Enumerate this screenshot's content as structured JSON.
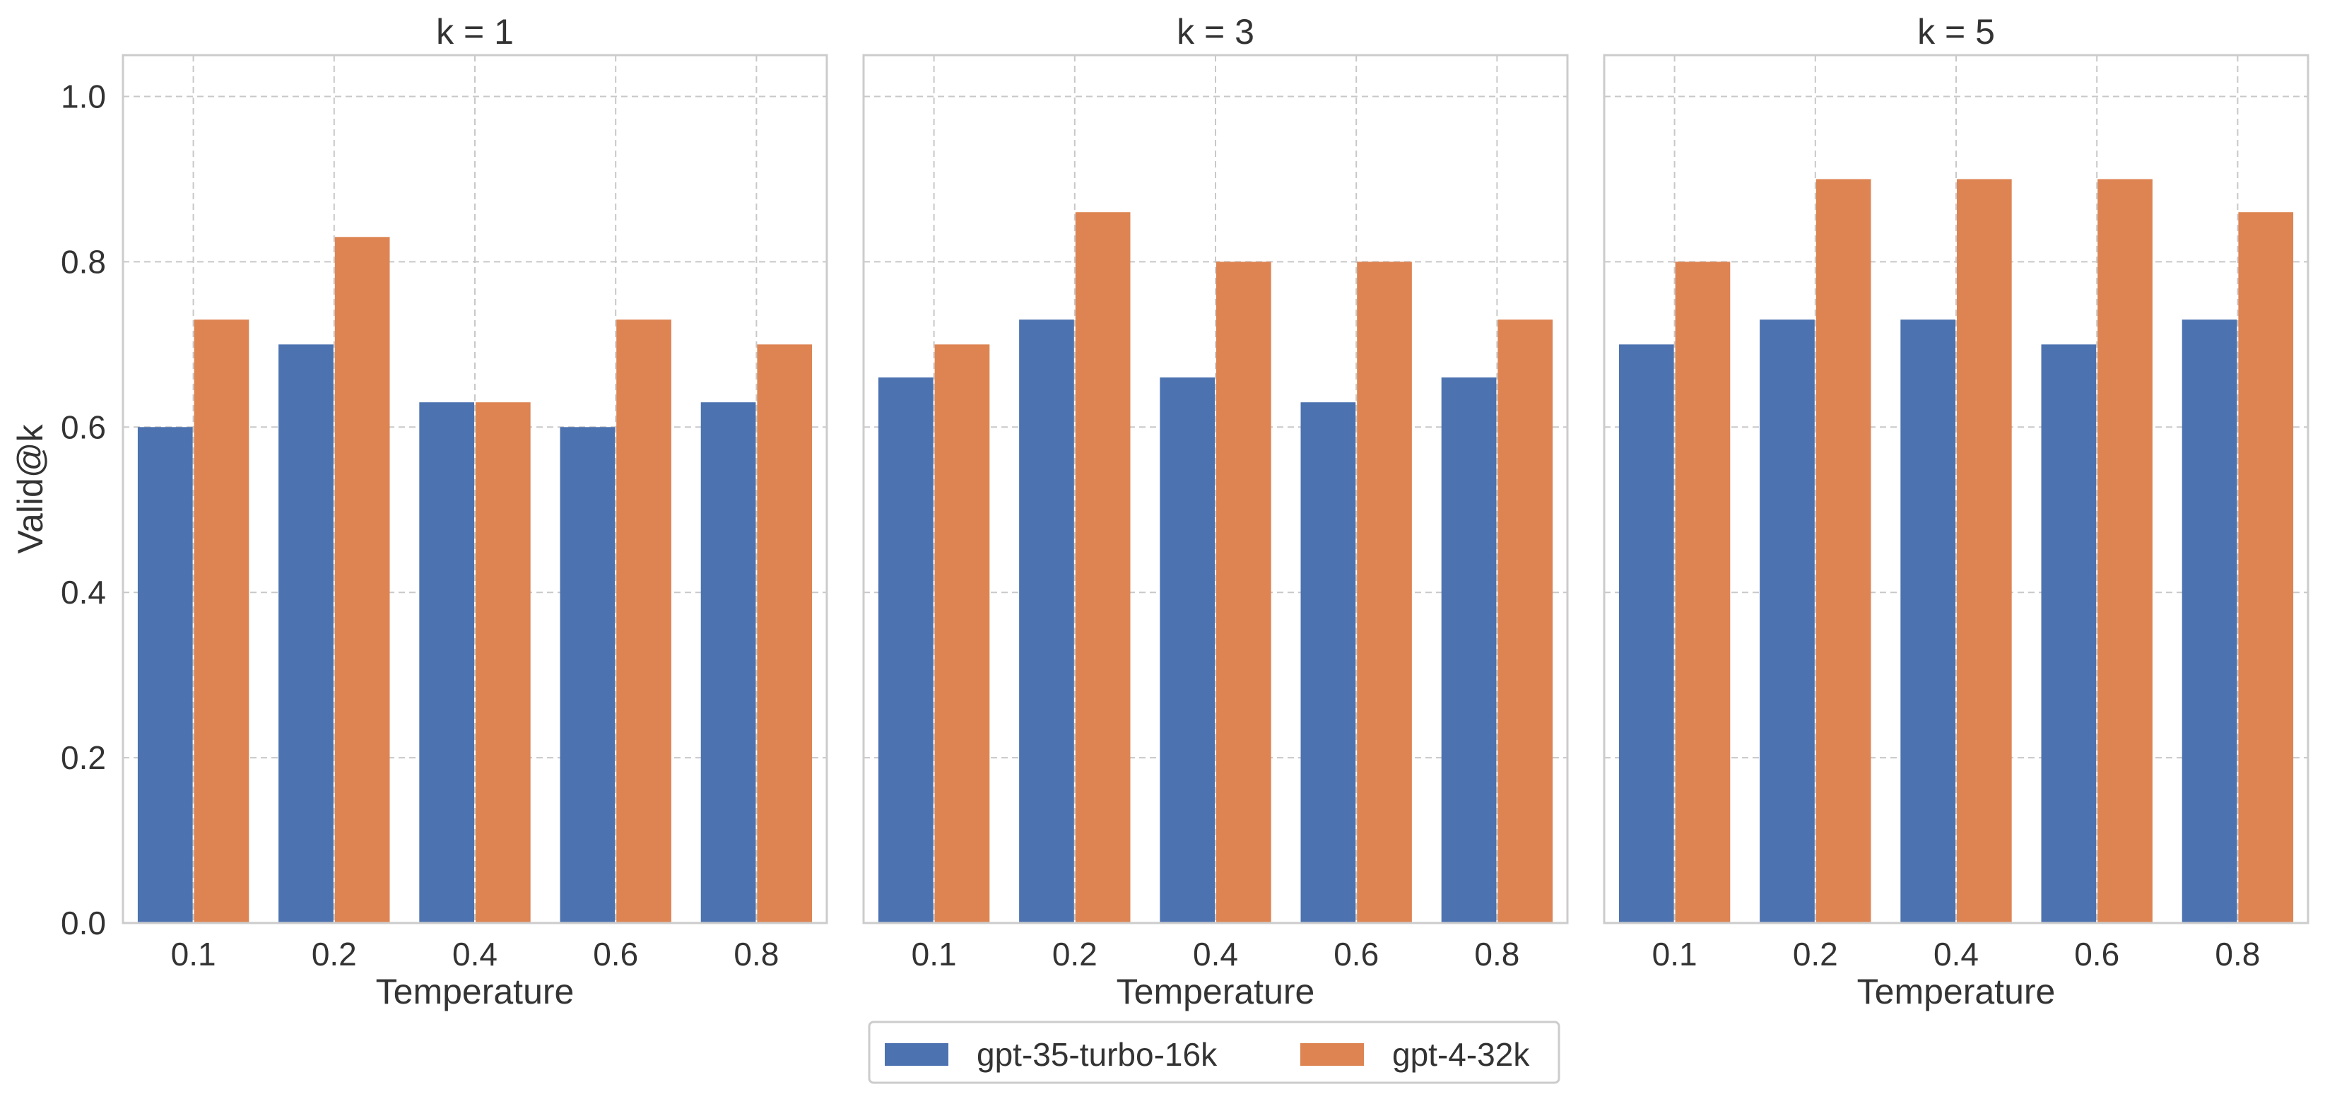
{
  "colors": {
    "series_1": "#4c72b0",
    "series_2": "#dd8452",
    "grid": "#c8c8c8",
    "axes_edge": "#cccccc",
    "text": "#333333"
  },
  "legend": {
    "placement": "bottom-center",
    "entries": [
      "gpt-35-turbo-16k",
      "gpt-4-32k"
    ]
  },
  "chart_data": [
    {
      "type": "bar",
      "title": "k = 1",
      "xlabel": "Temperature",
      "ylabel": "Valid@k",
      "categories": [
        "0.1",
        "0.2",
        "0.4",
        "0.6",
        "0.8"
      ],
      "yticks": [
        "0.0",
        "0.2",
        "0.4",
        "0.6",
        "0.8",
        "1.0"
      ],
      "ylim": [
        0,
        1.05
      ],
      "grid": true,
      "series": [
        {
          "name": "gpt-35-turbo-16k",
          "values": [
            0.6,
            0.7,
            0.63,
            0.6,
            0.63
          ]
        },
        {
          "name": "gpt-4-32k",
          "values": [
            0.73,
            0.83,
            0.63,
            0.73,
            0.7
          ]
        }
      ]
    },
    {
      "type": "bar",
      "title": "k = 3",
      "xlabel": "Temperature",
      "ylabel": "",
      "categories": [
        "0.1",
        "0.2",
        "0.4",
        "0.6",
        "0.8"
      ],
      "yticks": [],
      "ylim": [
        0,
        1.05
      ],
      "grid": true,
      "series": [
        {
          "name": "gpt-35-turbo-16k",
          "values": [
            0.66,
            0.73,
            0.66,
            0.63,
            0.66
          ]
        },
        {
          "name": "gpt-4-32k",
          "values": [
            0.7,
            0.86,
            0.8,
            0.8,
            0.73
          ]
        }
      ]
    },
    {
      "type": "bar",
      "title": "k = 5",
      "xlabel": "Temperature",
      "ylabel": "",
      "categories": [
        "0.1",
        "0.2",
        "0.4",
        "0.6",
        "0.8"
      ],
      "yticks": [],
      "ylim": [
        0,
        1.05
      ],
      "grid": true,
      "series": [
        {
          "name": "gpt-35-turbo-16k",
          "values": [
            0.7,
            0.73,
            0.73,
            0.7,
            0.73
          ]
        },
        {
          "name": "gpt-4-32k",
          "values": [
            0.8,
            0.9,
            0.9,
            0.9,
            0.86
          ]
        }
      ]
    }
  ]
}
